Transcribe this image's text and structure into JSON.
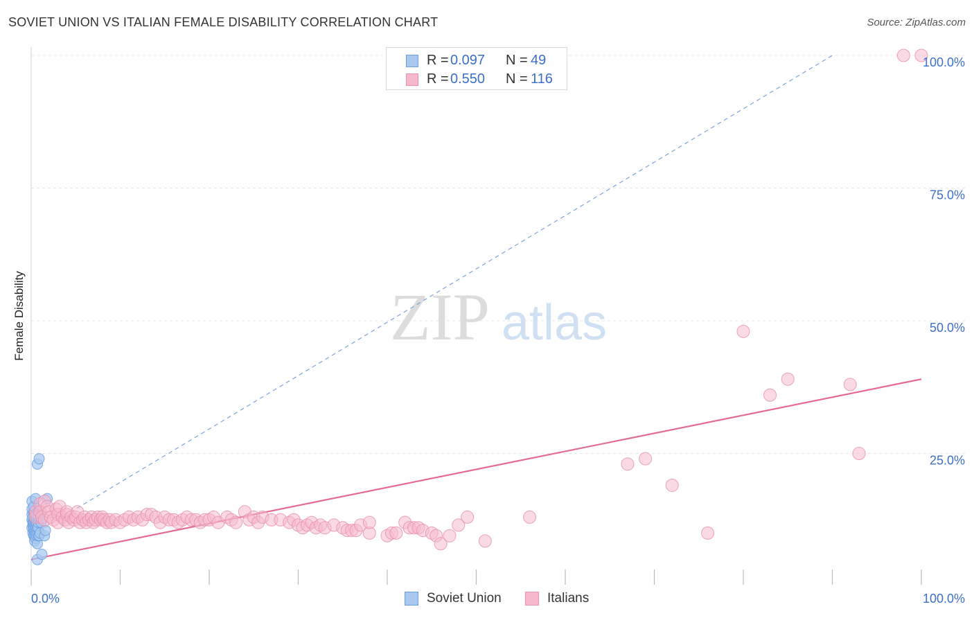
{
  "title": "SOVIET UNION VS ITALIAN FEMALE DISABILITY CORRELATION CHART",
  "source": "Source: ZipAtlas.com",
  "watermark": {
    "zip": "ZIP",
    "atlas": "atlas"
  },
  "colors": {
    "blue_fill": "#a9c8f0",
    "blue_stroke": "#6a9fe0",
    "pink_fill": "#f5b8cc",
    "pink_stroke": "#e890ad",
    "pink_line": "#e46a96",
    "blue_line": "#7ba3df",
    "value_text": "#3b6fc9",
    "grid": "#e4e4e4"
  },
  "legend": {
    "rows": [
      {
        "r_label": "R =",
        "r_value": "0.097",
        "n_label": "N =",
        "n_value": "49"
      },
      {
        "r_label": "R =",
        "r_value": "0.550",
        "n_label": "N =",
        "n_value": "116"
      }
    ]
  },
  "chart_data": {
    "type": "scatter",
    "title": "SOVIET UNION VS ITALIAN FEMALE DISABILITY CORRELATION CHART",
    "xlabel": "",
    "ylabel": "Female Disability",
    "xlim": [
      0,
      100
    ],
    "ylim": [
      0,
      100
    ],
    "x_tick_labels": {
      "left": "0.0%",
      "right": "100.0%"
    },
    "y_ticks": [
      {
        "value": 25,
        "label": "25.0%"
      },
      {
        "value": 50,
        "label": "50.0%"
      },
      {
        "value": 75,
        "label": "75.0%"
      },
      {
        "value": 100,
        "label": "100.0%"
      }
    ],
    "grid": true,
    "legend_position": "top-center",
    "series": [
      {
        "name": "Soviet Union",
        "color": "blue",
        "r": 0.097,
        "n": 49,
        "trend": {
          "style": "dashed",
          "x": [
            0,
            90
          ],
          "y": [
            9.5,
            100
          ]
        },
        "points": [
          [
            0.1,
            11
          ],
          [
            0.1,
            12.5
          ],
          [
            0.1,
            13.5
          ],
          [
            0.1,
            14.5
          ],
          [
            0.1,
            16
          ],
          [
            0.2,
            10
          ],
          [
            0.2,
            11.5
          ],
          [
            0.2,
            12
          ],
          [
            0.2,
            13
          ],
          [
            0.3,
            9.5
          ],
          [
            0.3,
            10.5
          ],
          [
            0.3,
            11
          ],
          [
            0.3,
            12
          ],
          [
            0.3,
            14
          ],
          [
            0.3,
            15
          ],
          [
            0.4,
            8.5
          ],
          [
            0.4,
            9.5
          ],
          [
            0.4,
            10.5
          ],
          [
            0.4,
            11.5
          ],
          [
            0.4,
            12.5
          ],
          [
            0.4,
            13.5
          ],
          [
            0.5,
            9
          ],
          [
            0.5,
            10
          ],
          [
            0.5,
            11
          ],
          [
            0.5,
            12
          ],
          [
            0.5,
            16.5
          ],
          [
            0.6,
            9.5
          ],
          [
            0.6,
            10.5
          ],
          [
            0.6,
            11.5
          ],
          [
            0.6,
            12
          ],
          [
            0.6,
            13
          ],
          [
            0.7,
            5
          ],
          [
            0.7,
            8
          ],
          [
            0.7,
            10
          ],
          [
            0.7,
            11
          ],
          [
            0.7,
            23
          ],
          [
            0.8,
            9.5
          ],
          [
            0.8,
            11
          ],
          [
            0.8,
            12
          ],
          [
            0.8,
            13
          ],
          [
            0.8,
            14
          ],
          [
            0.9,
            9.5
          ],
          [
            0.9,
            24
          ],
          [
            1.0,
            10
          ],
          [
            1.1,
            12
          ],
          [
            1.2,
            6
          ],
          [
            1.5,
            9.5
          ],
          [
            1.6,
            10.5
          ],
          [
            1.8,
            16.5
          ]
        ]
      },
      {
        "name": "Italians",
        "color": "pink",
        "r": 0.55,
        "n": 116,
        "trend": {
          "style": "solid",
          "x": [
            0,
            100
          ],
          "y": [
            5,
            39
          ]
        },
        "points": [
          [
            0.5,
            14
          ],
          [
            0.5,
            13
          ],
          [
            1,
            15.5
          ],
          [
            1,
            14
          ],
          [
            1.2,
            13
          ],
          [
            1.5,
            12.5
          ],
          [
            1.5,
            16
          ],
          [
            1.8,
            15
          ],
          [
            2,
            14
          ],
          [
            2.2,
            13
          ],
          [
            2.5,
            12.5
          ],
          [
            2.8,
            14.5
          ],
          [
            3,
            13.5
          ],
          [
            3,
            12
          ],
          [
            3.2,
            15
          ],
          [
            3.5,
            13
          ],
          [
            3.8,
            12.5
          ],
          [
            4,
            13.5
          ],
          [
            4,
            14
          ],
          [
            4.2,
            12
          ],
          [
            4.5,
            13
          ],
          [
            4.8,
            12.5
          ],
          [
            5,
            13
          ],
          [
            5.2,
            14
          ],
          [
            5.5,
            12
          ],
          [
            5.8,
            12.5
          ],
          [
            6,
            13
          ],
          [
            6.2,
            12
          ],
          [
            6.5,
            12.5
          ],
          [
            6.8,
            13
          ],
          [
            7,
            12
          ],
          [
            7.2,
            12.5
          ],
          [
            7.5,
            13
          ],
          [
            7.8,
            12.5
          ],
          [
            8,
            13
          ],
          [
            8.2,
            12.5
          ],
          [
            8.5,
            12
          ],
          [
            8.8,
            12.5
          ],
          [
            9,
            12
          ],
          [
            9.5,
            12.5
          ],
          [
            10,
            12
          ],
          [
            10.5,
            12.5
          ],
          [
            11,
            13
          ],
          [
            11.5,
            12.5
          ],
          [
            12,
            13
          ],
          [
            12.5,
            12.5
          ],
          [
            13,
            13.5
          ],
          [
            13.5,
            13.5
          ],
          [
            14,
            13
          ],
          [
            14.5,
            12
          ],
          [
            15,
            13
          ],
          [
            15.5,
            12.5
          ],
          [
            16,
            12.5
          ],
          [
            16.5,
            12
          ],
          [
            17,
            12.5
          ],
          [
            17.5,
            13
          ],
          [
            18,
            12.5
          ],
          [
            18.5,
            12.5
          ],
          [
            19,
            12
          ],
          [
            19.5,
            12.5
          ],
          [
            20,
            12.5
          ],
          [
            20.5,
            13
          ],
          [
            21,
            12
          ],
          [
            22,
            13
          ],
          [
            22.5,
            12.5
          ],
          [
            23,
            12
          ],
          [
            24,
            14
          ],
          [
            24.5,
            12.5
          ],
          [
            25,
            13
          ],
          [
            25.5,
            12
          ],
          [
            26,
            13
          ],
          [
            27,
            12.5
          ],
          [
            28,
            12.5
          ],
          [
            29,
            12
          ],
          [
            29.5,
            12.5
          ],
          [
            30,
            11.5
          ],
          [
            30.5,
            11
          ],
          [
            31,
            11.5
          ],
          [
            31.5,
            12
          ],
          [
            32,
            11
          ],
          [
            32.5,
            11.5
          ],
          [
            33,
            11
          ],
          [
            34,
            11.5
          ],
          [
            35,
            11
          ],
          [
            35.5,
            10.5
          ],
          [
            36,
            10.5
          ],
          [
            36.5,
            10.5
          ],
          [
            37,
            11.5
          ],
          [
            38,
            10
          ],
          [
            38,
            12
          ],
          [
            40,
            9.5
          ],
          [
            40.5,
            10
          ],
          [
            41,
            10
          ],
          [
            42,
            12
          ],
          [
            42.5,
            11
          ],
          [
            43,
            11
          ],
          [
            43.5,
            11
          ],
          [
            44,
            10.5
          ],
          [
            45,
            10
          ],
          [
            45.5,
            9.5
          ],
          [
            46,
            8
          ],
          [
            47,
            9.5
          ],
          [
            48,
            11.5
          ],
          [
            49,
            13
          ],
          [
            51,
            8.5
          ],
          [
            56,
            13
          ],
          [
            67,
            23
          ],
          [
            69,
            24
          ],
          [
            72,
            19
          ],
          [
            76,
            10
          ],
          [
            80,
            48
          ],
          [
            83,
            36
          ],
          [
            85,
            39
          ],
          [
            92,
            38
          ],
          [
            93,
            25
          ],
          [
            98,
            100
          ],
          [
            100,
            100
          ]
        ]
      }
    ]
  },
  "axes_data": {
    "x_left_label": "0.0%",
    "x_right_label": "100.0%",
    "y_labels": [
      "25.0%",
      "50.0%",
      "75.0%",
      "100.0%"
    ],
    "y_axis_title": "Female Disability"
  },
  "bottom_legend": [
    {
      "label": "Soviet Union"
    },
    {
      "label": "Italians"
    }
  ]
}
